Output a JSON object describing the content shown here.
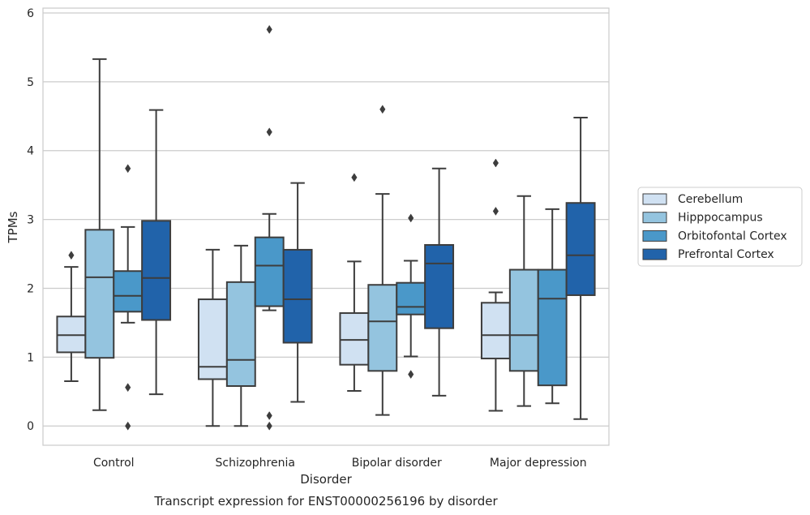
{
  "chart_data": {
    "type": "box",
    "title": "",
    "caption": "Transcript expression for ENST00000256196 by disorder",
    "xlabel": "Disorder",
    "ylabel": "TPMs",
    "ylim": [
      -0.28,
      6.07
    ],
    "yticks": [
      "0",
      "1",
      "2",
      "3",
      "4",
      "5",
      "6"
    ],
    "grid": "horizontal",
    "legend_position": "right",
    "categories": [
      "Control",
      "Schizophrenia",
      "Bipolar disorder",
      "Major depression"
    ],
    "series": [
      {
        "name": "Cerebellum",
        "color": "#d0e1f2",
        "boxes": [
          {
            "whislo": 0.65,
            "q1": 1.07,
            "med": 1.32,
            "q3": 1.59,
            "whishi": 2.31,
            "fliers": [
              2.48
            ]
          },
          {
            "whislo": 0.0,
            "q1": 0.68,
            "med": 0.86,
            "q3": 1.84,
            "whishi": 2.56,
            "fliers": []
          },
          {
            "whislo": 0.51,
            "q1": 0.89,
            "med": 1.25,
            "q3": 1.64,
            "whishi": 2.39,
            "fliers": [
              3.61
            ]
          },
          {
            "whislo": 0.22,
            "q1": 0.98,
            "med": 1.32,
            "q3": 1.79,
            "whishi": 1.94,
            "fliers": [
              3.82,
              3.12
            ]
          }
        ]
      },
      {
        "name": "Hipppocampus",
        "color": "#94c4df",
        "boxes": [
          {
            "whislo": 0.23,
            "q1": 0.99,
            "med": 2.16,
            "q3": 2.85,
            "whishi": 5.33,
            "fliers": []
          },
          {
            "whislo": 0.0,
            "q1": 0.58,
            "med": 0.96,
            "q3": 2.09,
            "whishi": 2.62,
            "fliers": []
          },
          {
            "whislo": 0.16,
            "q1": 0.8,
            "med": 1.52,
            "q3": 2.05,
            "whishi": 3.37,
            "fliers": [
              4.6
            ]
          },
          {
            "whislo": 0.29,
            "q1": 0.8,
            "med": 1.32,
            "q3": 2.27,
            "whishi": 3.34,
            "fliers": []
          }
        ]
      },
      {
        "name": "Orbitofontal Cortex",
        "color": "#4a98c9",
        "boxes": [
          {
            "whislo": 1.5,
            "q1": 1.66,
            "med": 1.89,
            "q3": 2.25,
            "whishi": 2.89,
            "fliers": [
              3.74,
              0.56,
              0.0
            ]
          },
          {
            "whislo": 1.68,
            "q1": 1.74,
            "med": 2.33,
            "q3": 2.74,
            "whishi": 3.08,
            "fliers": [
              5.76,
              4.27,
              0.15,
              0.0
            ]
          },
          {
            "whislo": 1.01,
            "q1": 1.62,
            "med": 1.73,
            "q3": 2.08,
            "whishi": 2.4,
            "fliers": [
              3.02,
              0.75
            ]
          },
          {
            "whislo": 0.33,
            "q1": 0.59,
            "med": 1.85,
            "q3": 2.27,
            "whishi": 3.15,
            "fliers": []
          }
        ]
      },
      {
        "name": "Prefrontal Cortex",
        "color": "#2163aa",
        "boxes": [
          {
            "whislo": 0.46,
            "q1": 1.54,
            "med": 2.15,
            "q3": 2.98,
            "whishi": 4.59,
            "fliers": []
          },
          {
            "whislo": 0.35,
            "q1": 1.21,
            "med": 1.84,
            "q3": 2.56,
            "whishi": 3.53,
            "fliers": []
          },
          {
            "whislo": 0.44,
            "q1": 1.42,
            "med": 2.36,
            "q3": 2.63,
            "whishi": 3.74,
            "fliers": []
          },
          {
            "whislo": 0.1,
            "q1": 1.9,
            "med": 2.48,
            "q3": 3.24,
            "whishi": 4.48,
            "fliers": []
          }
        ]
      }
    ]
  }
}
